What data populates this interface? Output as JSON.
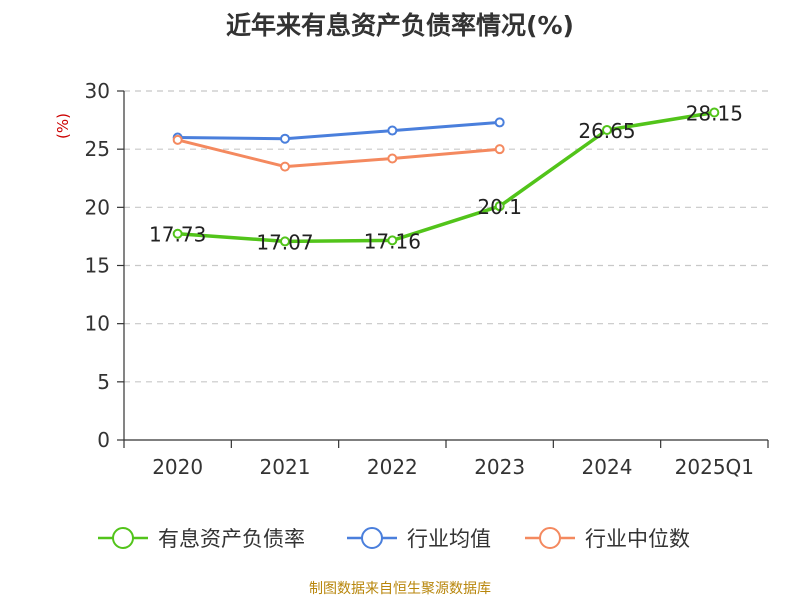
{
  "chart_data": {
    "type": "line",
    "title": "近年来有息资产负债率情况(%)",
    "ylabel": "(%)",
    "categories": [
      "2020",
      "2021",
      "2022",
      "2023",
      "2024",
      "2025Q1"
    ],
    "ylim": [
      0,
      30
    ],
    "yticks": [
      0,
      5,
      10,
      15,
      20,
      25,
      30
    ],
    "grid": true,
    "legend_position": "bottom",
    "series": [
      {
        "name": "有息资产负债率",
        "color": "#52c41a",
        "values": [
          17.73,
          17.07,
          17.16,
          20.1,
          26.65,
          28.15
        ],
        "labels": [
          "17.73",
          "17.07",
          "17.16",
          "20.1",
          "26.65",
          "28.15"
        ]
      },
      {
        "name": "行业均值",
        "color": "#4a7fdc",
        "values": [
          26.0,
          25.9,
          26.6,
          27.3,
          null,
          null
        ]
      },
      {
        "name": "行业中位数",
        "color": "#f4895f",
        "values": [
          25.8,
          23.5,
          24.2,
          25.0,
          null,
          null
        ]
      }
    ]
  },
  "footer": "制图数据来自恒生聚源数据库"
}
